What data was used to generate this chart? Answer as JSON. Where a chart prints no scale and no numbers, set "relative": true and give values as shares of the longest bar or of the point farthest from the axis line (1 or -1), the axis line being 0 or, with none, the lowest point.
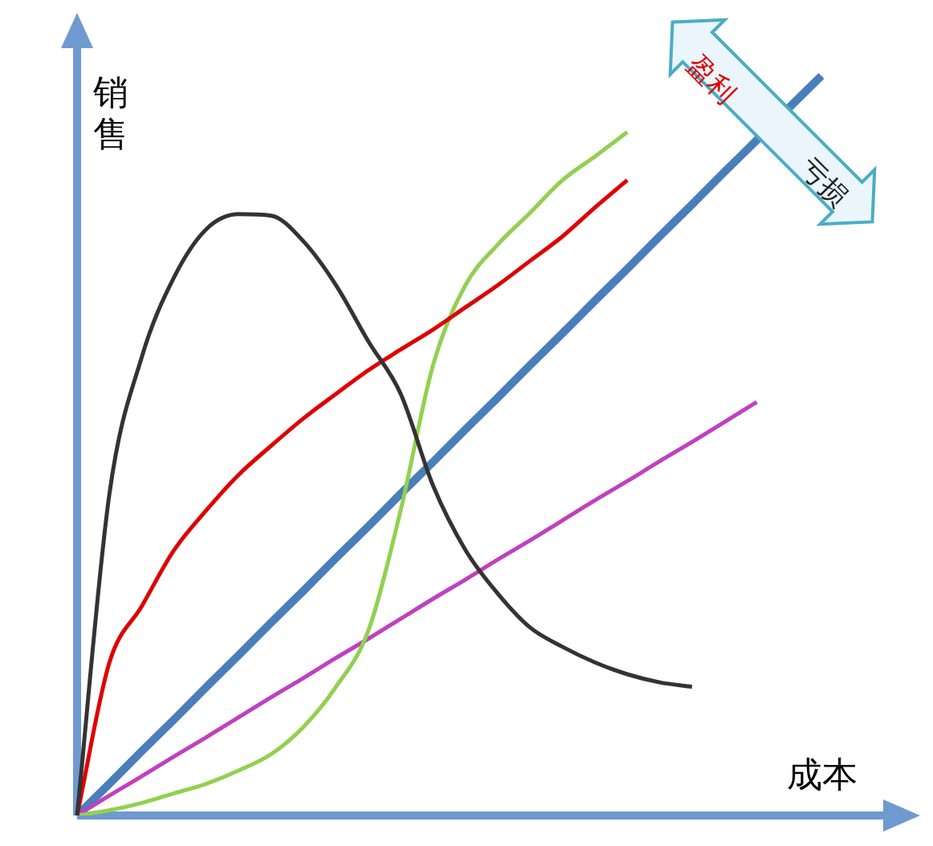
{
  "chart_data": {
    "type": "line",
    "relative": true,
    "marker": "none",
    "xlabel": "成本",
    "ylabel": "销售",
    "annotations": [
      "盈利",
      "亏损"
    ],
    "categories": [
      null,
      null,
      null,
      null,
      null,
      null,
      null,
      null,
      null,
      null,
      null,
      null,
      null,
      null,
      null,
      null,
      null,
      null,
      null,
      null,
      null,
      null,
      null,
      null,
      null,
      null,
      null
    ],
    "series": [
      {
        "color": "#333333",
        "values": [
          0,
          0.435,
          0.62,
          0.728,
          0.793,
          0.813,
          0.811,
          0.776,
          0.717,
          0.641,
          0.57,
          0.446,
          0.359,
          0.3,
          0.254,
          0.228,
          0.207,
          0.191,
          0.18,
          0.174,
          null,
          null,
          null,
          null,
          null,
          null,
          null
        ]
      },
      {
        "color": "#e00000",
        "values": [
          0,
          0.207,
          0.283,
          0.359,
          0.413,
          0.461,
          0.5,
          0.537,
          0.57,
          0.602,
          0.63,
          0.657,
          0.687,
          0.717,
          0.75,
          0.783,
          0.822,
          0.859,
          null,
          null,
          null,
          null,
          null,
          null,
          null,
          null,
          null
        ]
      },
      {
        "color": "#92d050",
        "values": [
          0,
          0.007,
          0.017,
          0.03,
          0.043,
          0.061,
          0.083,
          0.12,
          0.174,
          0.25,
          0.413,
          0.609,
          0.717,
          0.772,
          0.815,
          0.859,
          0.891,
          0.924,
          null,
          null,
          null,
          null,
          null,
          null,
          null,
          null,
          null
        ]
      },
      {
        "color": "#c040c0",
        "values": [
          0,
          0.027,
          0.053,
          0.08,
          0.106,
          0.133,
          0.16,
          0.186,
          0.213,
          0.239,
          0.266,
          0.293,
          0.319,
          0.346,
          0.372,
          0.399,
          0.426,
          0.452,
          0.479,
          0.505,
          0.532,
          0.559,
          null,
          null,
          null,
          null,
          null
        ]
      },
      {
        "color": "#4a7ebb",
        "values": [
          0,
          0.043,
          0.087,
          0.13,
          0.174,
          0.217,
          0.261,
          0.304,
          0.348,
          0.391,
          0.435,
          0.478,
          0.522,
          0.565,
          0.609,
          0.652,
          0.696,
          0.739,
          0.783,
          0.826,
          0.87,
          0.913,
          0.957,
          1,
          null,
          null,
          null
        ]
      }
    ]
  }
}
